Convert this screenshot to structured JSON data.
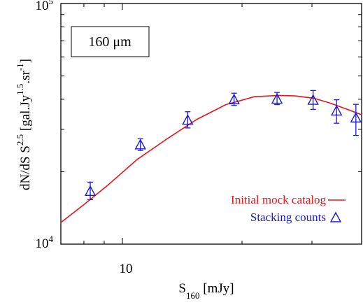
{
  "chart_data": {
    "type": "line",
    "annotation": "160 μm",
    "ylabel": {
      "base": "dN/dS S",
      "exp1": "2.5",
      "mid": " [gal.Jy",
      "exp2": "1.5",
      "mid2": ".sr",
      "exp3": "-1",
      "end": "]"
    },
    "xlabel": {
      "base": "S",
      "sub": "160",
      "rest": " [mJy]"
    },
    "x_scale": "log",
    "y_scale": "log",
    "xlim": [
      7.0,
      40.0
    ],
    "ylim": [
      10000,
      100000
    ],
    "x_ticks": [
      {
        "value": 10,
        "label": "10"
      }
    ],
    "y_ticks": [
      {
        "value": 10000,
        "base": "10",
        "exp": "4"
      },
      {
        "value": 100000,
        "base": "10",
        "exp": "5"
      }
    ],
    "legend_position": "bottom-right",
    "series": [
      {
        "name": "Initial mock catalog",
        "style": "line",
        "color": "#e8141c",
        "x": [
          7.0,
          8.0,
          9.2,
          10.9,
          13.0,
          15.4,
          18.2,
          21.5,
          24.8,
          27.2,
          30.3,
          33.3,
          36.4,
          40.0
        ],
        "y": [
          12300,
          14600,
          17600,
          22500,
          27500,
          33000,
          38000,
          41000,
          41500,
          41300,
          40400,
          38600,
          36600,
          34500
        ]
      },
      {
        "name": "Stacking counts",
        "style": "triangle",
        "color": "#1a1ad6",
        "x": [
          8.3,
          11.1,
          14.6,
          19.1,
          24.5,
          30.2,
          34.6,
          38.7
        ],
        "y": [
          16600,
          25900,
          32800,
          39900,
          40100,
          39700,
          35800,
          33500
        ],
        "err_low": [
          1300,
          1400,
          2400,
          2200,
          2100,
          3400,
          4000,
          5200
        ],
        "err_high": [
          1500,
          1500,
          2700,
          2500,
          2600,
          3800,
          4000,
          4600
        ]
      }
    ]
  }
}
